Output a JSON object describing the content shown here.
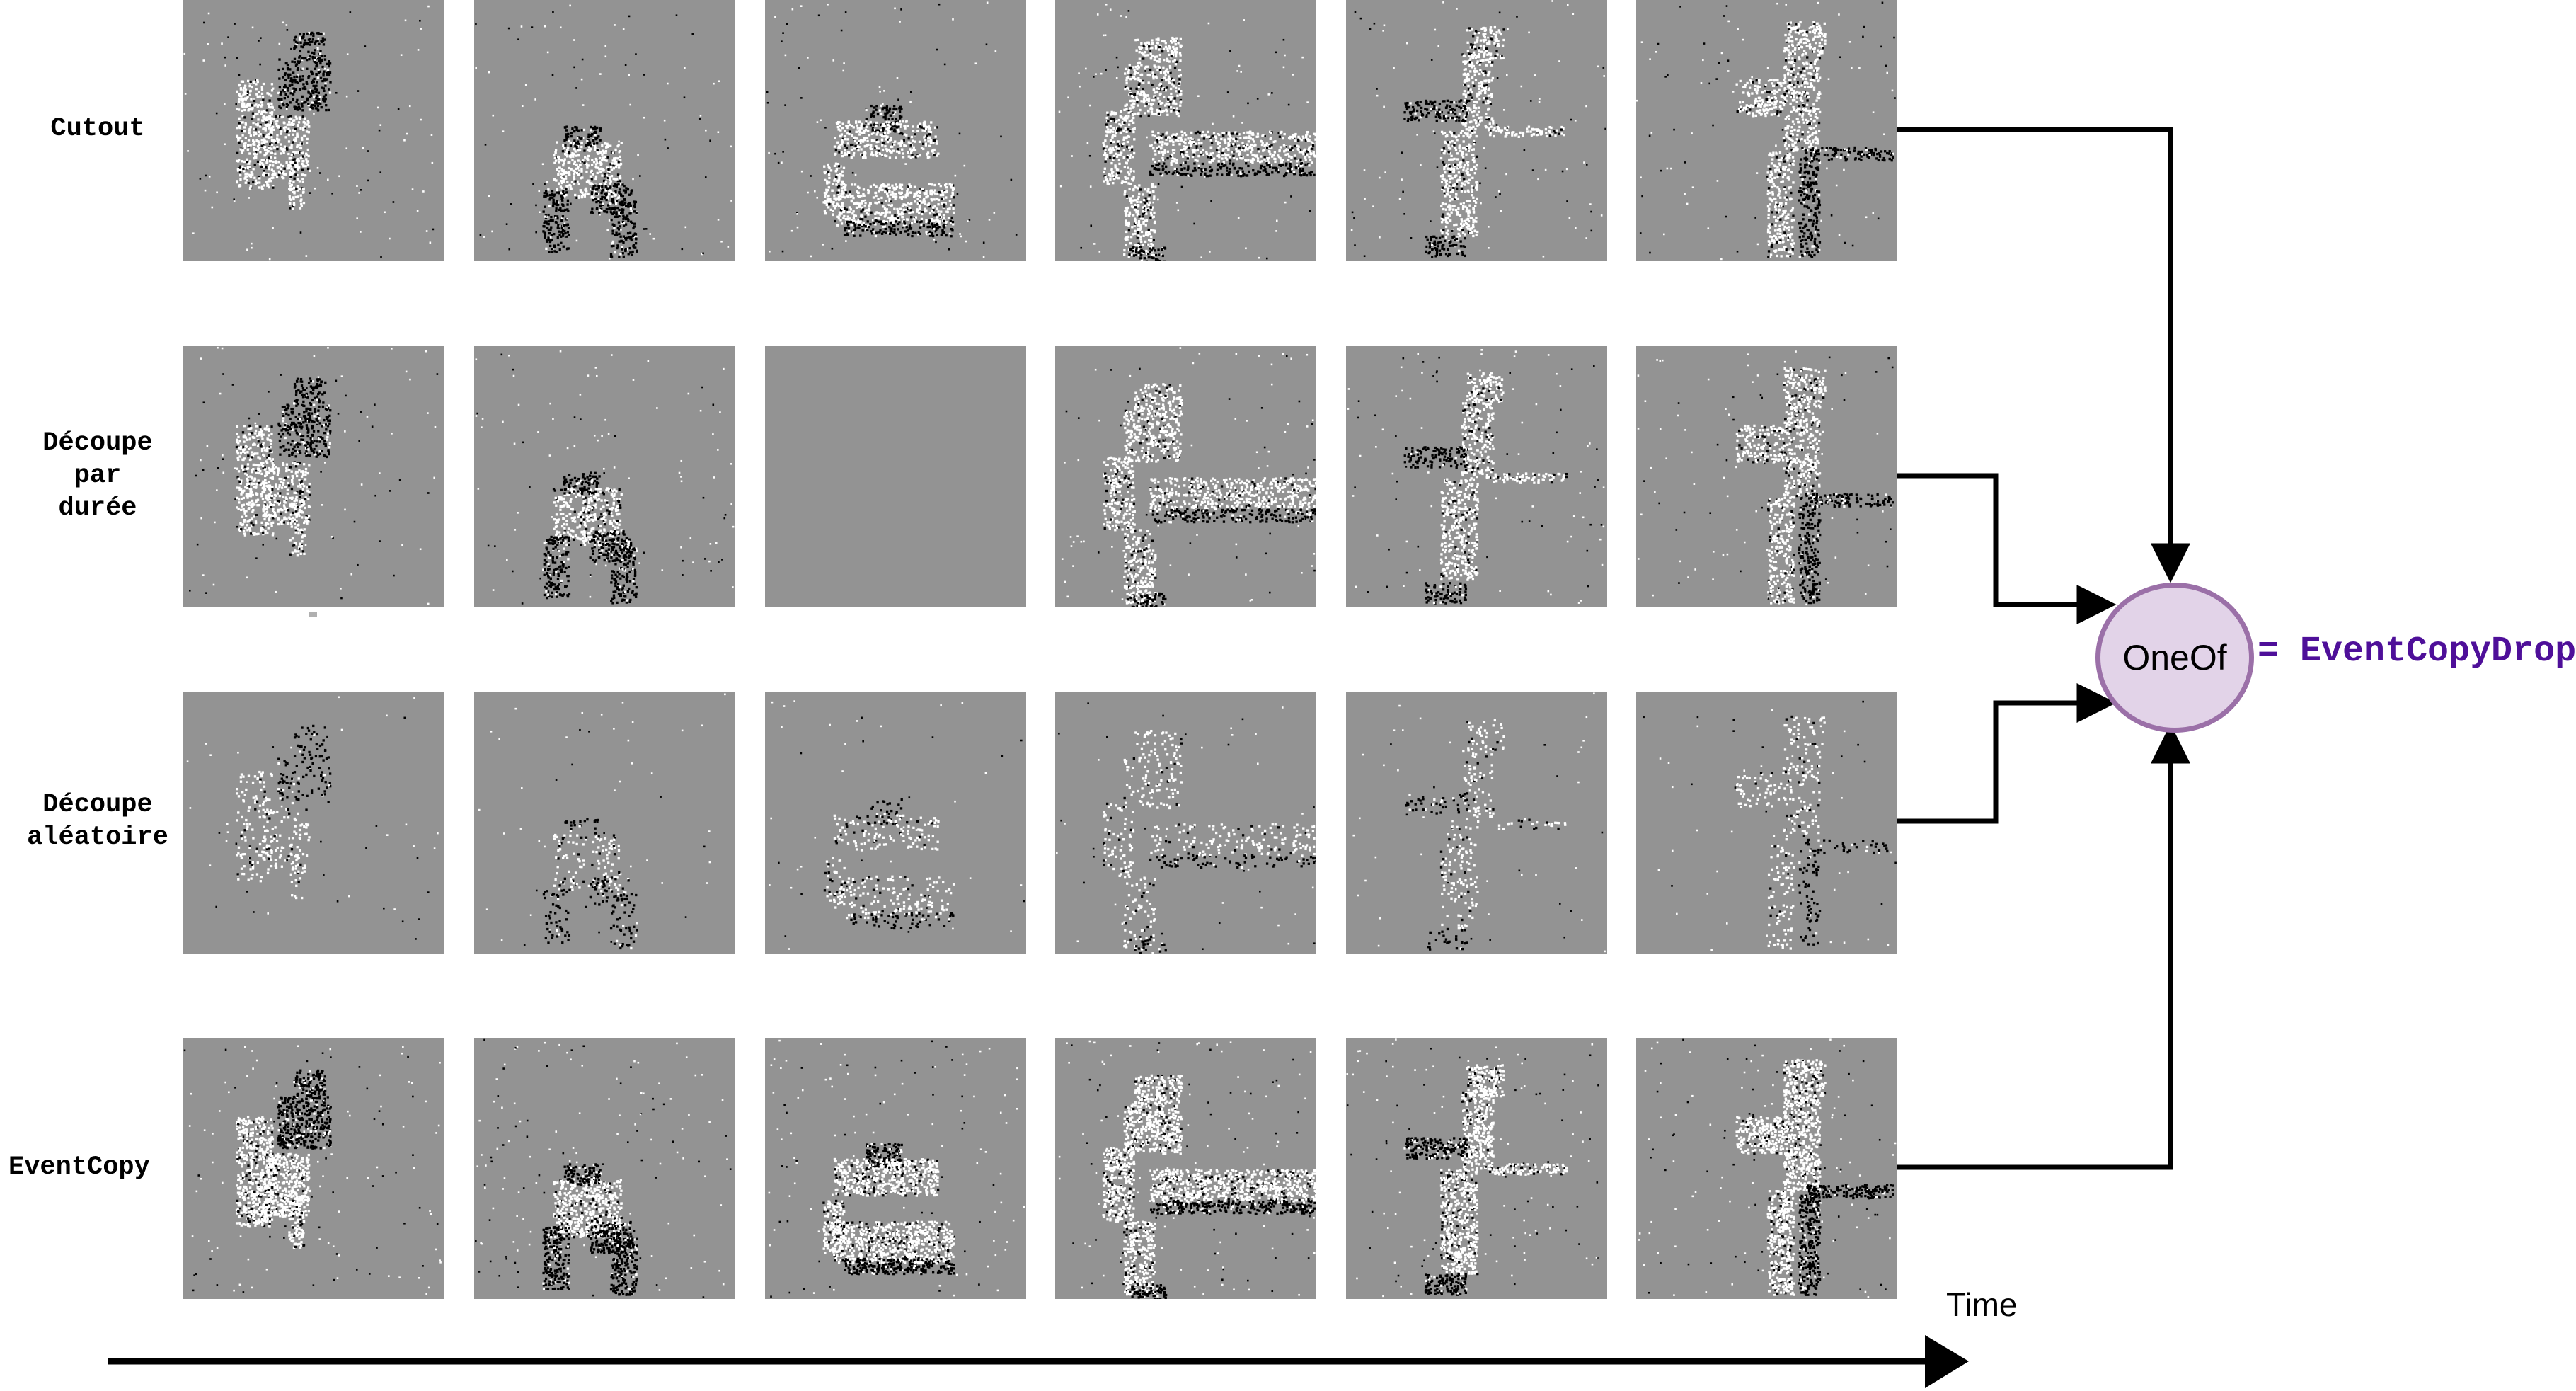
{
  "rows": [
    {
      "key": "cutout",
      "label_lines": [
        "Cutout"
      ],
      "density": "medium",
      "frames": [
        "chair-lift",
        "chair-carry",
        "chair-tilt",
        "chair-hold",
        "person-stand",
        "person-point"
      ]
    },
    {
      "key": "decoupe-duree",
      "label_lines": [
        "Découpe",
        "par",
        "durée"
      ],
      "density": "medium",
      "frames": [
        "chair-lift",
        "chair-carry",
        "empty",
        "chair-hold",
        "person-stand",
        "person-point"
      ]
    },
    {
      "key": "decoupe-aleatoire",
      "label_lines": [
        "Découpe",
        "aléatoire"
      ],
      "density": "sparse",
      "frames": [
        "chair-lift",
        "chair-carry",
        "chair-tilt",
        "chair-hold",
        "person-stand",
        "person-point"
      ]
    },
    {
      "key": "eventcopy",
      "label_lines": [
        "EventCopy"
      ],
      "density": "dense",
      "frames": [
        "chair-lift",
        "chair-carry",
        "chair-tilt",
        "chair-hold",
        "person-stand",
        "person-point"
      ]
    }
  ],
  "node": {
    "label": "OneOf"
  },
  "result": {
    "label": "= EventCopyDrop"
  },
  "axis": {
    "label": "Time"
  },
  "colors": {
    "frame_bg": "#939393",
    "event_on": "#ffffff",
    "event_off": "#000000",
    "node_fill": "#e2d3e8",
    "node_stroke": "#9b70a8",
    "result_text": "#4e0f99"
  }
}
